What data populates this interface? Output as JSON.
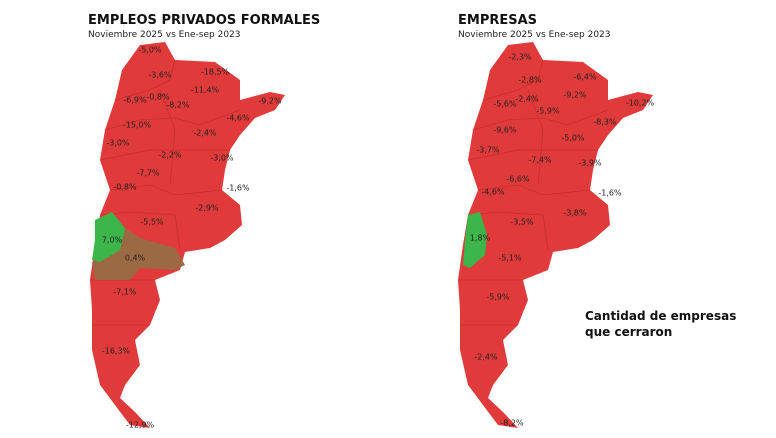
{
  "left_map": {
    "title": "EMPLEOS PRIVADOS FORMALES",
    "subtitle": "Noviembre 2025 vs Ene-sep 2023",
    "labels": [
      "-5,0%",
      "-3,6%",
      "-18,5%",
      "-11,4%",
      "-9,2%",
      "-6,9%",
      "-0,8%",
      "-8,2%",
      "-4,6%",
      "-15,0%",
      "-2,4%",
      "-3,0%",
      "-2,2%",
      "-3,0%",
      "-7,7%",
      "-1,6%",
      "-0,8%",
      "-2,9%",
      "-5,5%",
      "7,0%",
      "0,4%",
      "-7,1%",
      "-16,3%",
      "-12,9%"
    ]
  },
  "right_map": {
    "title": "EMPRESAS",
    "subtitle": "Noviembre 2025 vs Ene-sep 2023",
    "labels": [
      "-2,3%",
      "-2,8%",
      "-6,4%",
      "-9,2%",
      "-10,2%",
      "-5,6%",
      "-2,4%",
      "-5,9%",
      "-8,3%",
      "-9,6%",
      "-5,0%",
      "-3,7%",
      "-7,4%",
      "-3,9%",
      "-6,6%",
      "-1,6%",
      "-4,6%",
      "-3,5%",
      "-3,8%",
      "1,8%",
      "-5,1%",
      "-5,9%",
      "-2,4%",
      "-8,2%"
    ],
    "note": [
      "Cantidad de empresas",
      "que cerraron"
    ]
  }
}
